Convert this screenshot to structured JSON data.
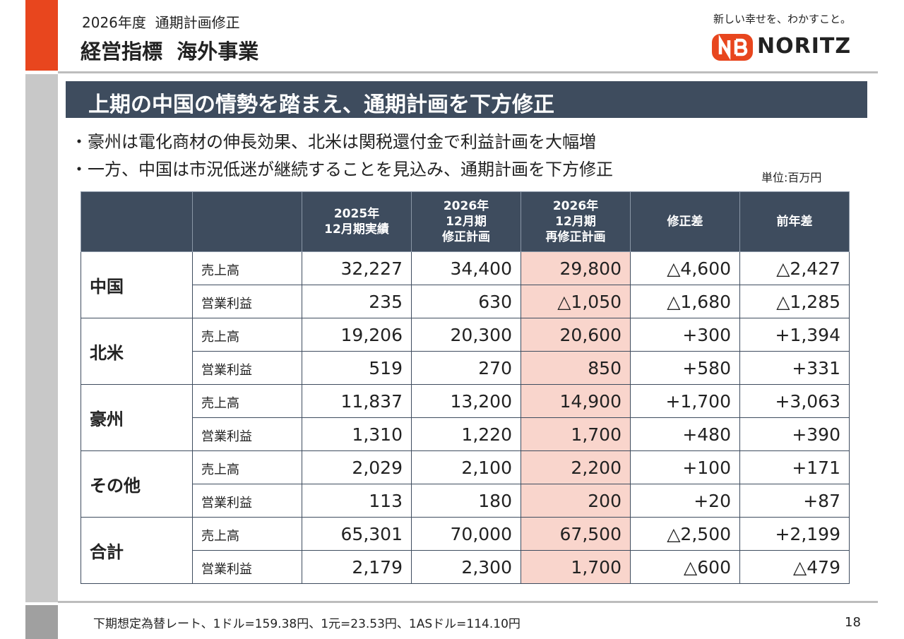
{
  "header": {
    "subtitle": "2026年度  通期計画修正",
    "title": "経営指標  海外事業",
    "tagline": "新しい幸せを、わかすこと。",
    "logo": "NORITZ"
  },
  "banner": "上期の中国の情勢を踏まえ、通期計画を下方修正",
  "bullets": [
    "・豪州は電化商材の伸長効果、北米は関税還付金で利益計画を大幅増",
    "・一方、中国は市況低迷が継続することを見込み、通期計画を下方修正"
  ],
  "unit": "単位:百万円",
  "table": {
    "columns": [
      [
        "2025年",
        "12月期実績"
      ],
      [
        "2026年",
        "12月期",
        "修正計画"
      ],
      [
        "2026年",
        "12月期",
        "再修正計画"
      ],
      [
        "修正差"
      ],
      [
        "前年差"
      ]
    ],
    "groups": [
      {
        "region": "中国",
        "rows": [
          {
            "label": "売上高",
            "values": [
              "32,227",
              "34,400",
              "29,800",
              "△4,600",
              "△2,427"
            ]
          },
          {
            "label": "営業利益",
            "values": [
              "235",
              "630",
              "△1,050",
              "△1,680",
              "△1,285"
            ]
          }
        ]
      },
      {
        "region": "北米",
        "rows": [
          {
            "label": "売上高",
            "values": [
              "19,206",
              "20,300",
              "20,600",
              "+300",
              "+1,394"
            ]
          },
          {
            "label": "営業利益",
            "values": [
              "519",
              "270",
              "850",
              "+580",
              "+331"
            ]
          }
        ]
      },
      {
        "region": "豪州",
        "rows": [
          {
            "label": "売上高",
            "values": [
              "11,837",
              "13,200",
              "14,900",
              "+1,700",
              "+3,063"
            ]
          },
          {
            "label": "営業利益",
            "values": [
              "1,310",
              "1,220",
              "1,700",
              "+480",
              "+390"
            ]
          }
        ]
      },
      {
        "region": "その他",
        "rows": [
          {
            "label": "売上高",
            "values": [
              "2,029",
              "2,100",
              "2,200",
              "+100",
              "+171"
            ]
          },
          {
            "label": "営業利益",
            "values": [
              "113",
              "180",
              "200",
              "+20",
              "+87"
            ]
          }
        ]
      },
      {
        "region": "合計",
        "rows": [
          {
            "label": "売上高",
            "values": [
              "65,301",
              "70,000",
              "67,500",
              "△2,500",
              "+2,199"
            ]
          },
          {
            "label": "営業利益",
            "values": [
              "2,179",
              "2,300",
              "1,700",
              "△600",
              "△479"
            ]
          }
        ]
      }
    ]
  },
  "footer": {
    "note": "下期想定為替レート、1ドル=159.38円、1元=23.53円、1ASドル=114.10円",
    "page": "18"
  }
}
